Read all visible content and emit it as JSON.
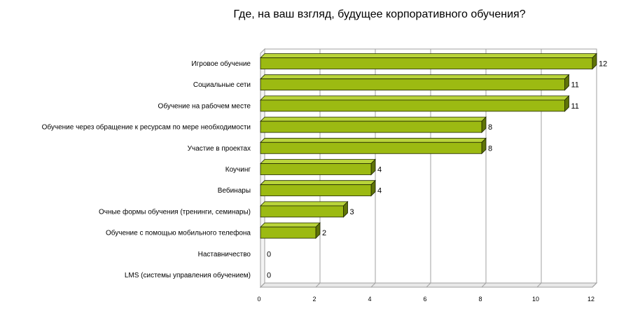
{
  "chart_data": {
    "type": "bar",
    "orientation": "horizontal",
    "title": "Где, на ваш взгляд, будущее корпоративного обучения?",
    "categories": [
      "Игровое обучение",
      "Социальные сети",
      "Обучение на рабочем месте",
      "Обучение через обращение к ресурсам по мере необходимости",
      "Участие в проектах",
      "Коучинг",
      "Вебинары",
      "Очные формы обучения (тренинги, семинары)",
      "Обучение с помощью мобильного телефона",
      "Наставничество",
      "LMS (системы управления обучением)"
    ],
    "values": [
      12,
      11,
      11,
      8,
      8,
      4,
      4,
      3,
      2,
      0,
      0
    ],
    "xlim": [
      0,
      12
    ],
    "xticks": [
      0,
      2,
      4,
      6,
      8,
      10,
      12
    ],
    "grid": true,
    "legend": "none",
    "colors": {
      "bar_front": "#9cba12",
      "bar_top": "#b9d43a",
      "bar_side": "#5f7408",
      "bar_edge": "#1e2600",
      "grid": "#a0a0a0",
      "wall": "#ffffff"
    }
  }
}
